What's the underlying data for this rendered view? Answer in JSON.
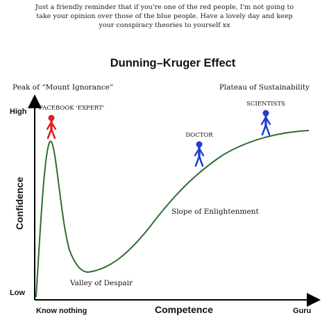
{
  "caption": {
    "line1": "Just a friendly reminder that if you're one of the red people, I'm not going to",
    "line2": "take your opinion over those of the blue people. Have a lovely day and keep",
    "line3": "your conspiracy theories to yourself xx"
  },
  "diagram": {
    "title": "Dunning–Kruger Effect",
    "y_label": "Confidence",
    "x_label": "Competence",
    "y_high": "High",
    "y_low": "Low",
    "x_low": "Know nothing",
    "x_high": "Guru",
    "peak_label": "Peak of “Mount Ignorance”",
    "plateau_label": "Plateau of Sustainability",
    "slope_label": "Slope of Enlightenment",
    "valley_label": "Valley of Despair",
    "figures": [
      {
        "label": "FACEBOOK 'EXPERT'",
        "color": "#e02020"
      },
      {
        "label": "DOCTOR",
        "color": "#1f3fd0"
      },
      {
        "label": "SCIENTISTS",
        "color": "#1f3fd0"
      }
    ],
    "curve_color": "#2e6b2e",
    "axis_color": "#000000"
  }
}
